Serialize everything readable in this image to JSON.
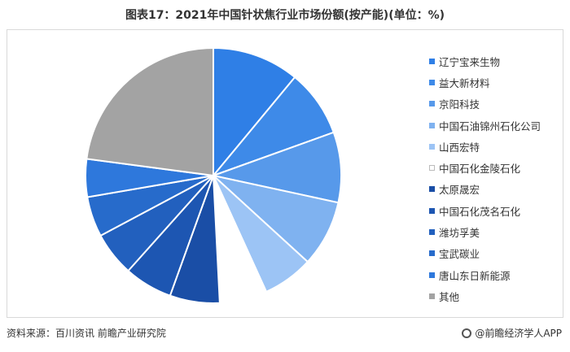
{
  "title": "图表17：2021年中国针状焦行业市场份额(按产能)(单位：%)",
  "source": "资料来源：百川资讯 前瞻产业研究院",
  "brand": "@前瞻经济学人APP",
  "chart_data": {
    "type": "pie",
    "title": "图表17：2021年中国针状焦行业市场份额(按产能)(单位：%)",
    "legend_position": "right",
    "start_angle_deg": 0,
    "direction": "clockwise",
    "slices": [
      {
        "name": "辽宁宝来生物",
        "value": 11.0,
        "color": "#2f7fe6"
      },
      {
        "name": "益大新材料",
        "value": 8.5,
        "color": "#3e8ae8"
      },
      {
        "name": "京阳科技",
        "value": 8.9,
        "color": "#5799ea"
      },
      {
        "name": "中国石油锦州石化公司",
        "value": 8.4,
        "color": "#7fb2f0"
      },
      {
        "name": "山西宏特",
        "value": 6.4,
        "color": "#9cc4f5"
      },
      {
        "name": "中国石化金陵石化",
        "value": 6.0,
        "color": "#ffffff"
      },
      {
        "name": "太原晟宏",
        "value": 6.3,
        "color": "#1a4ea6"
      },
      {
        "name": "中国石化茂名石化",
        "value": 6.1,
        "color": "#1d56b2"
      },
      {
        "name": "潍坊孚美",
        "value": 5.6,
        "color": "#2260be"
      },
      {
        "name": "宝武碳业",
        "value": 5.1,
        "color": "#276bcb"
      },
      {
        "name": "唐山东日新能源",
        "value": 4.8,
        "color": "#2e78dc"
      },
      {
        "name": "其他",
        "value": 22.9,
        "color": "#a3a3a3"
      }
    ]
  }
}
